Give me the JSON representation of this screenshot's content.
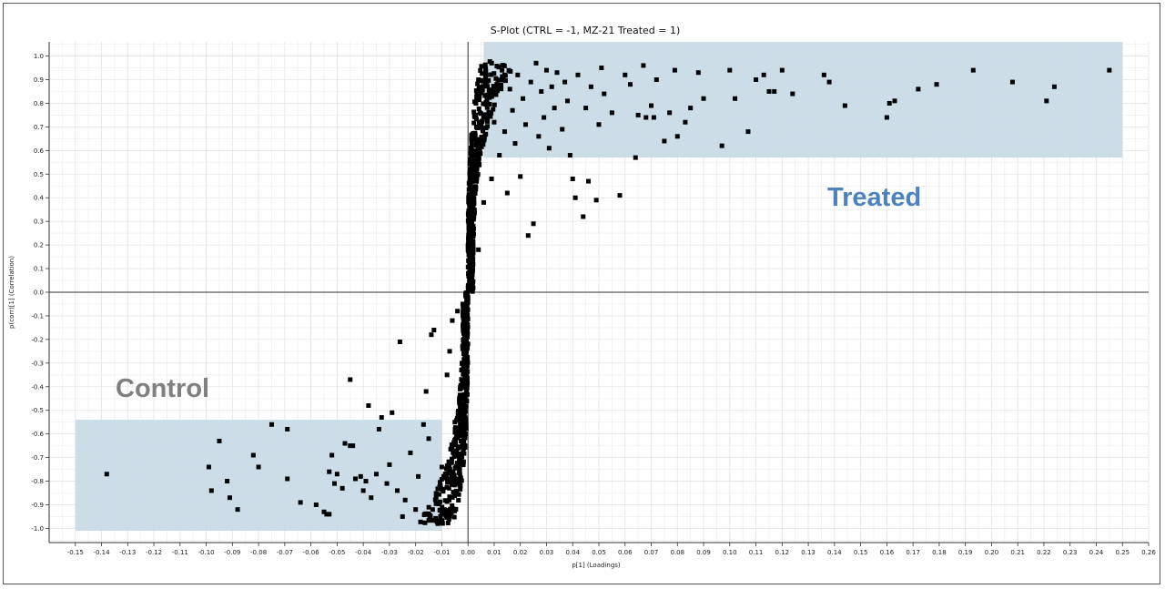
{
  "chart_data": {
    "type": "scatter",
    "title": "S-Plot (CTRL = -1, MZ-21 Treated = 1)",
    "xlabel": "p[1] (Loadings)",
    "ylabel": "p(corr)[1] (Correlation)",
    "xlim": [
      -0.16,
      0.26
    ],
    "ylim": [
      -1.06,
      1.06
    ],
    "grid": true,
    "xticks": [
      "-0.15",
      "-0.14",
      "-0.13",
      "-0.12",
      "-0.11",
      "-0.10",
      "-0.09",
      "-0.08",
      "-0.07",
      "-0.06",
      "-0.05",
      "-0.04",
      "-0.03",
      "-0.02",
      "-0.01",
      "0.00",
      "0.01",
      "0.02",
      "0.03",
      "0.04",
      "0.05",
      "0.06",
      "0.07",
      "0.08",
      "0.09",
      "0.10",
      "0.11",
      "0.12",
      "0.13",
      "0.14",
      "0.15",
      "0.16",
      "0.17",
      "0.18",
      "0.19",
      "0.20",
      "0.21",
      "0.22",
      "0.23",
      "0.24",
      "0.25",
      "0.26"
    ],
    "yticks": [
      "-1.0",
      "-0.9",
      "-0.8",
      "-0.7",
      "-0.6",
      "-0.5",
      "-0.4",
      "-0.3",
      "-0.2",
      "-0.1",
      "0.0",
      "0.1",
      "0.2",
      "0.3",
      "0.4",
      "0.5",
      "0.6",
      "0.7",
      "0.8",
      "0.9",
      "1.0"
    ],
    "regions": [
      {
        "name": "Control",
        "x": [
          -0.15,
          -0.01
        ],
        "y": [
          -1.01,
          -0.54
        ],
        "fill": "#c8d9e6",
        "label_color": "#808080"
      },
      {
        "name": "Treated",
        "x": [
          0.006,
          0.25
        ],
        "y": [
          0.57,
          1.06
        ],
        "fill": "#c8d9e6",
        "label_color": "#4f81bd"
      }
    ],
    "series": [
      {
        "marker": "square",
        "color": "#000000",
        "points": [
          [
            -0.138,
            -0.77
          ],
          [
            -0.099,
            -0.74
          ],
          [
            -0.098,
            -0.84
          ],
          [
            -0.095,
            -0.63
          ],
          [
            -0.092,
            -0.8
          ],
          [
            -0.091,
            -0.87
          ],
          [
            -0.088,
            -0.92
          ],
          [
            -0.082,
            -0.69
          ],
          [
            -0.08,
            -0.74
          ],
          [
            -0.075,
            -0.56
          ],
          [
            -0.069,
            -0.58
          ],
          [
            -0.069,
            -0.79
          ],
          [
            -0.064,
            -0.89
          ],
          [
            -0.058,
            -0.9
          ],
          [
            -0.055,
            -0.93
          ],
          [
            -0.054,
            -0.94
          ],
          [
            -0.053,
            -0.94
          ],
          [
            -0.053,
            -0.76
          ],
          [
            -0.052,
            -0.69
          ],
          [
            -0.051,
            -0.81
          ],
          [
            -0.05,
            -0.77
          ],
          [
            -0.048,
            -0.83
          ],
          [
            -0.047,
            -0.64
          ],
          [
            -0.045,
            -0.37
          ],
          [
            -0.045,
            -0.65
          ],
          [
            -0.044,
            -0.65
          ],
          [
            -0.043,
            -0.79
          ],
          [
            -0.041,
            -0.78
          ],
          [
            -0.04,
            -0.84
          ],
          [
            -0.039,
            -0.8
          ],
          [
            -0.038,
            -0.48
          ],
          [
            -0.037,
            -0.87
          ],
          [
            -0.035,
            -0.77
          ],
          [
            -0.034,
            -0.58
          ],
          [
            -0.033,
            -0.53
          ],
          [
            -0.031,
            -0.81
          ],
          [
            -0.03,
            -0.73
          ],
          [
            -0.029,
            -0.51
          ],
          [
            -0.027,
            -0.84
          ],
          [
            -0.026,
            -0.21
          ],
          [
            -0.025,
            -0.95
          ],
          [
            -0.024,
            -0.88
          ],
          [
            -0.022,
            -0.68
          ],
          [
            -0.02,
            -0.92
          ],
          [
            -0.019,
            -0.78
          ],
          [
            -0.017,
            -0.56
          ],
          [
            -0.016,
            -0.42
          ],
          [
            -0.015,
            -0.62
          ],
          [
            -0.014,
            -0.18
          ],
          [
            -0.013,
            -0.16
          ],
          [
            -0.011,
            -0.97
          ],
          [
            -0.01,
            -0.74
          ],
          [
            -0.009,
            -0.92
          ],
          [
            -0.008,
            -0.35
          ],
          [
            -0.007,
            -0.25
          ],
          [
            -0.006,
            -0.12
          ],
          [
            -0.005,
            -0.55
          ],
          [
            -0.004,
            -0.08
          ],
          [
            -0.003,
            -0.41
          ],
          [
            -0.002,
            -0.05
          ],
          [
            0.001,
            0.08
          ],
          [
            0.002,
            0.28
          ],
          [
            0.002,
            0.55
          ],
          [
            0.003,
            0.75
          ],
          [
            0.004,
            0.18
          ],
          [
            0.004,
            0.9
          ],
          [
            0.005,
            0.65
          ],
          [
            0.006,
            0.38
          ],
          [
            0.007,
            0.92
          ],
          [
            0.008,
            0.83
          ],
          [
            0.009,
            0.48
          ],
          [
            0.01,
            0.72
          ],
          [
            0.011,
            0.88
          ],
          [
            0.012,
            0.58
          ],
          [
            0.013,
            0.94
          ],
          [
            0.014,
            0.68
          ],
          [
            0.015,
            0.42
          ],
          [
            0.016,
            0.86
          ],
          [
            0.017,
            0.77
          ],
          [
            0.018,
            0.63
          ],
          [
            0.019,
            0.92
          ],
          [
            0.02,
            0.49
          ],
          [
            0.021,
            0.82
          ],
          [
            0.022,
            0.71
          ],
          [
            0.023,
            0.24
          ],
          [
            0.024,
            0.89
          ],
          [
            0.025,
            0.29
          ],
          [
            0.026,
            0.97
          ],
          [
            0.027,
            0.66
          ],
          [
            0.028,
            0.85
          ],
          [
            0.029,
            0.74
          ],
          [
            0.03,
            0.94
          ],
          [
            0.031,
            0.61
          ],
          [
            0.032,
            0.87
          ],
          [
            0.033,
            0.78
          ],
          [
            0.034,
            0.93
          ],
          [
            0.036,
            0.69
          ],
          [
            0.037,
            0.89
          ],
          [
            0.038,
            0.81
          ],
          [
            0.039,
            0.58
          ],
          [
            0.04,
            0.48
          ],
          [
            0.041,
            0.4
          ],
          [
            0.042,
            0.92
          ],
          [
            0.044,
            0.32
          ],
          [
            0.045,
            0.78
          ],
          [
            0.046,
            0.47
          ],
          [
            0.047,
            0.87
          ],
          [
            0.049,
            0.39
          ],
          [
            0.05,
            0.71
          ],
          [
            0.051,
            0.95
          ],
          [
            0.052,
            0.84
          ],
          [
            0.055,
            0.76
          ],
          [
            0.058,
            0.41
          ],
          [
            0.06,
            0.92
          ],
          [
            0.062,
            0.88
          ],
          [
            0.064,
            0.57
          ],
          [
            0.065,
            0.75
          ],
          [
            0.067,
            0.96
          ],
          [
            0.068,
            0.74
          ],
          [
            0.07,
            0.79
          ],
          [
            0.071,
            0.74
          ],
          [
            0.072,
            0.9
          ],
          [
            0.075,
            0.64
          ],
          [
            0.077,
            0.76
          ],
          [
            0.079,
            0.94
          ],
          [
            0.08,
            0.66
          ],
          [
            0.083,
            0.72
          ],
          [
            0.085,
            0.78
          ],
          [
            0.088,
            0.93
          ],
          [
            0.09,
            0.82
          ],
          [
            0.097,
            0.62
          ],
          [
            0.1,
            0.94
          ],
          [
            0.102,
            0.82
          ],
          [
            0.107,
            0.68
          ],
          [
            0.11,
            0.9
          ],
          [
            0.113,
            0.92
          ],
          [
            0.115,
            0.85
          ],
          [
            0.117,
            0.85
          ],
          [
            0.12,
            0.94
          ],
          [
            0.124,
            0.84
          ],
          [
            0.136,
            0.92
          ],
          [
            0.138,
            0.89
          ],
          [
            0.144,
            0.79
          ],
          [
            0.16,
            0.74
          ],
          [
            0.161,
            0.8
          ],
          [
            0.163,
            0.81
          ],
          [
            0.172,
            0.86
          ],
          [
            0.179,
            0.88
          ],
          [
            0.193,
            0.94
          ],
          [
            0.208,
            0.89
          ],
          [
            0.221,
            0.81
          ],
          [
            0.224,
            0.87
          ],
          [
            0.245,
            0.94
          ]
        ],
        "dense_band": {
          "description_free": true,
          "x_center_neg": -0.004,
          "x_center_pos": 0.004
        }
      }
    ]
  }
}
